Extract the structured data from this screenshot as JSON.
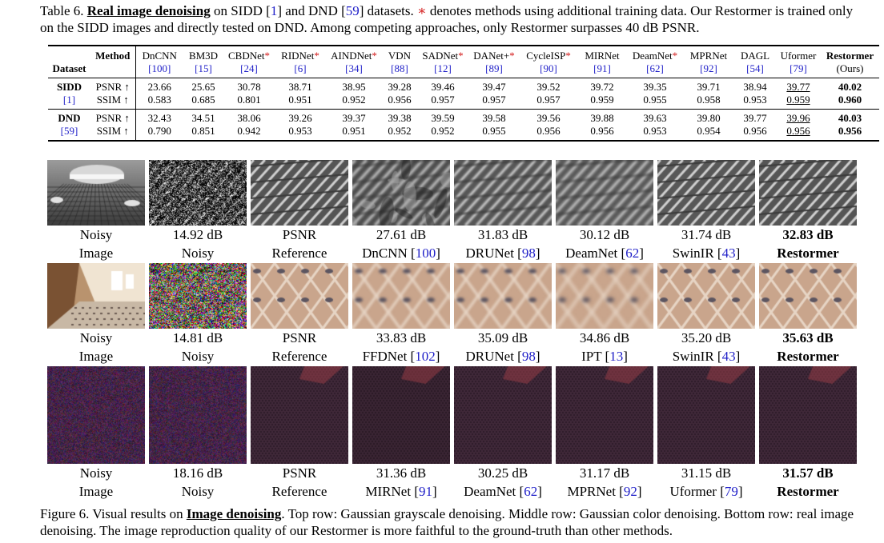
{
  "table_caption": {
    "prefix": "Table 6. ",
    "bold": "Real image denoising",
    "t1": " on SIDD [",
    "r1": "1",
    "t2": "] and DND [",
    "r2": "59",
    "t3": "] datasets. ",
    "star": "∗",
    "t4": " denotes methods using additional training data. Our Restormer is trained only on the SIDD images and directly tested on DND. Among competing approaches, only Restormer surpasses 40 dB PSNR."
  },
  "table": {
    "dataset_header": "Dataset",
    "method_header": "Method",
    "methods": [
      {
        "name": "DnCNN",
        "star": "",
        "ref": "[100]"
      },
      {
        "name": "BM3D",
        "star": "",
        "ref": "[15]"
      },
      {
        "name": "CBDNet",
        "star": "*",
        "ref": "[24]"
      },
      {
        "name": "RIDNet",
        "star": "*",
        "ref": "[6]"
      },
      {
        "name": "AINDNet",
        "star": "*",
        "ref": "[34]"
      },
      {
        "name": "VDN",
        "star": "",
        "ref": "[88]"
      },
      {
        "name": "SADNet",
        "star": "*",
        "ref": "[12]"
      },
      {
        "name": "DANet+",
        "star": "*",
        "ref": "[89]"
      },
      {
        "name": "CycleISP",
        "star": "*",
        "ref": "[90]"
      },
      {
        "name": "MIRNet",
        "star": "",
        "ref": "[91]"
      },
      {
        "name": "DeamNet",
        "star": "*",
        "ref": "[62]"
      },
      {
        "name": "MPRNet",
        "star": "",
        "ref": "[92]"
      },
      {
        "name": "DAGL",
        "star": "",
        "ref": "[54]"
      },
      {
        "name": "Uformer",
        "star": "",
        "ref": "[79]"
      },
      {
        "name": "Restormer",
        "star": "",
        "ref": "(Ours)"
      }
    ],
    "groups": [
      {
        "dataset": "SIDD",
        "ref": "[1]",
        "rows": [
          {
            "metric": "PSNR ↑",
            "values": [
              "23.66",
              "25.65",
              "30.78",
              "38.71",
              "38.95",
              "39.28",
              "39.46",
              "39.47",
              "39.52",
              "39.72",
              "39.35",
              "39.71",
              "38.94",
              "39.77",
              "40.02"
            ]
          },
          {
            "metric": "SSIM ↑",
            "values": [
              "0.583",
              "0.685",
              "0.801",
              "0.951",
              "0.952",
              "0.956",
              "0.957",
              "0.957",
              "0.957",
              "0.959",
              "0.955",
              "0.958",
              "0.953",
              "0.959",
              "0.960"
            ]
          }
        ]
      },
      {
        "dataset": "DND",
        "ref": "[59]",
        "rows": [
          {
            "metric": "PSNR ↑",
            "values": [
              "32.43",
              "34.51",
              "38.06",
              "39.26",
              "39.37",
              "39.38",
              "39.59",
              "39.58",
              "39.56",
              "39.88",
              "39.63",
              "39.80",
              "39.77",
              "39.96",
              "40.03"
            ]
          },
          {
            "metric": "SSIM ↑",
            "values": [
              "0.790",
              "0.851",
              "0.942",
              "0.953",
              "0.951",
              "0.952",
              "0.952",
              "0.955",
              "0.956",
              "0.956",
              "0.953",
              "0.954",
              "0.956",
              "0.956",
              "0.956"
            ]
          }
        ]
      }
    ]
  },
  "figure": {
    "rows": [
      {
        "top": [
          "Noisy",
          "14.92 dB",
          "PSNR",
          "27.61 dB",
          "31.83 dB",
          "30.12 dB",
          "31.74 dB",
          "32.83 dB"
        ],
        "bottom": [
          {
            "text": "Image",
            "ref": ""
          },
          {
            "text": "Noisy",
            "ref": ""
          },
          {
            "text": "Reference",
            "ref": ""
          },
          {
            "text": "DnCNN [",
            "ref": "100"
          },
          {
            "text": "DRUNet [",
            "ref": "98"
          },
          {
            "text": "DeamNet [",
            "ref": "62"
          },
          {
            "text": "SwinIR [",
            "ref": "43"
          },
          {
            "text": "Restormer",
            "ref": ""
          }
        ]
      },
      {
        "top": [
          "Noisy",
          "14.81 dB",
          "PSNR",
          "33.83 dB",
          "35.09 dB",
          "34.86 dB",
          "35.20 dB",
          "35.63 dB"
        ],
        "bottom": [
          {
            "text": "Image",
            "ref": ""
          },
          {
            "text": "Noisy",
            "ref": ""
          },
          {
            "text": "Reference",
            "ref": ""
          },
          {
            "text": "FFDNet [",
            "ref": "102"
          },
          {
            "text": "DRUNet [",
            "ref": "98"
          },
          {
            "text": "IPT [",
            "ref": "13"
          },
          {
            "text": "SwinIR [",
            "ref": "43"
          },
          {
            "text": "Restormer",
            "ref": ""
          }
        ]
      },
      {
        "top": [
          "Noisy",
          "18.16 dB",
          "PSNR",
          "31.36 dB",
          "30.25 dB",
          "31.17 dB",
          "31.15 dB",
          "31.57 dB"
        ],
        "bottom": [
          {
            "text": "Image",
            "ref": ""
          },
          {
            "text": "Noisy",
            "ref": ""
          },
          {
            "text": "Reference",
            "ref": ""
          },
          {
            "text": "MIRNet [",
            "ref": "91"
          },
          {
            "text": "DeamNet [",
            "ref": "62"
          },
          {
            "text": "MPRNet [",
            "ref": "92"
          },
          {
            "text": "Uformer [",
            "ref": "79"
          },
          {
            "text": "Restormer",
            "ref": ""
          }
        ]
      }
    ]
  },
  "figure_caption": {
    "prefix": "Figure 6.  Visual results on ",
    "bold": "Image denoising",
    "rest": ".  Top row: Gaussian grayscale denoising.  Middle row: Gaussian color denoising.  Bottom row: real image denoising. The image reproduction quality of our Restormer is more faithful to the ground-truth than other methods."
  },
  "colors": {
    "link": "#1f1fc8",
    "star": "#d31919"
  }
}
